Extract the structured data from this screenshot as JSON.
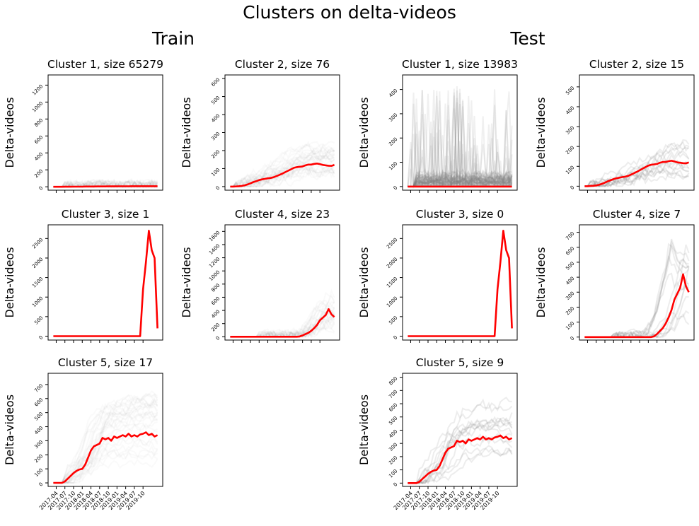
{
  "figure": {
    "title": "Clusters on delta-videos",
    "column_titles": [
      "Train",
      "Test"
    ]
  },
  "chart_data": [
    {
      "type": "line",
      "group": "Train",
      "title": "Cluster 1, size 65279",
      "ylabel": "Delta-videos",
      "ylim": [
        -40,
        1320
      ],
      "yticks": [
        0,
        200,
        400,
        600,
        800,
        1000,
        1200
      ],
      "show_xticks": false,
      "series": [
        {
          "name": "mean",
          "color": "#ff0000",
          "y": [
            0,
            0,
            0,
            0,
            1,
            1,
            1,
            2,
            2,
            2,
            2,
            3,
            3,
            3,
            3,
            4,
            4,
            4,
            4,
            5,
            5,
            5,
            5,
            6,
            6,
            6,
            6,
            7,
            7,
            7,
            7,
            7,
            7,
            7,
            7,
            7,
            7
          ]
        }
      ],
      "background": {
        "color": "#808080",
        "level": "faint",
        "curves": []
      }
    },
    {
      "type": "line",
      "group": "Train",
      "title": "Cluster 2, size 76",
      "ylabel": "Delta-videos",
      "ylim": [
        -20,
        620
      ],
      "yticks": [
        0,
        100,
        200,
        300,
        400,
        500,
        600
      ],
      "show_xticks": false,
      "series": [
        {
          "name": "mean",
          "color": "#ff0000",
          "y": [
            0,
            0,
            1,
            2,
            4,
            7,
            12,
            18,
            25,
            30,
            36,
            40,
            43,
            46,
            48,
            52,
            58,
            65,
            72,
            80,
            88,
            96,
            104,
            108,
            110,
            112,
            118,
            122,
            122,
            126,
            128,
            125,
            120,
            118,
            116,
            115,
            120
          ]
        }
      ],
      "background": {
        "color": "#808080",
        "level": "faint",
        "curves": []
      }
    },
    {
      "type": "line",
      "group": "Test",
      "title": "Cluster 1, size 13983",
      "ylabel": "Delta-videos",
      "ylim": [
        -15,
        460
      ],
      "yticks": [
        0,
        100,
        200,
        300,
        400
      ],
      "show_xticks": false,
      "series": [
        {
          "name": "mean",
          "color": "#ff0000",
          "y": [
            0,
            0,
            0,
            0,
            0,
            0,
            0,
            0,
            0,
            0,
            0,
            0,
            0,
            0,
            0,
            0,
            0,
            0,
            0,
            0,
            0,
            0,
            0,
            0,
            0,
            0,
            0,
            0,
            0,
            0,
            0,
            0,
            0,
            0,
            0,
            0,
            0
          ]
        }
      ],
      "background": {
        "color": "#808080",
        "level": "dense",
        "curves": []
      }
    },
    {
      "type": "line",
      "group": "Test",
      "title": "Cluster 2, size 15",
      "ylabel": "Delta-videos",
      "ylim": [
        -20,
        560
      ],
      "yticks": [
        0,
        100,
        200,
        300,
        400,
        500
      ],
      "show_xticks": false,
      "series": [
        {
          "name": "mean",
          "color": "#ff0000",
          "y": [
            0,
            0,
            1,
            2,
            4,
            7,
            12,
            18,
            25,
            30,
            36,
            40,
            43,
            46,
            48,
            52,
            58,
            65,
            72,
            80,
            88,
            96,
            104,
            108,
            110,
            112,
            118,
            122,
            122,
            126,
            128,
            125,
            120,
            118,
            116,
            115,
            120
          ]
        }
      ],
      "background": {
        "color": "#808080",
        "level": "medium",
        "curves": []
      }
    },
    {
      "type": "line",
      "group": "Train",
      "title": "Cluster 3, size 1",
      "ylabel": "Delta-videos",
      "ylim": [
        -100,
        2850
      ],
      "yticks": [
        0,
        500,
        1000,
        1500,
        2000,
        2500
      ],
      "show_xticks": false,
      "series": [
        {
          "name": "mean",
          "color": "#ff0000",
          "y": [
            0,
            0,
            0,
            0,
            0,
            0,
            0,
            0,
            0,
            0,
            0,
            0,
            0,
            0,
            0,
            0,
            0,
            0,
            0,
            0,
            0,
            0,
            0,
            0,
            0,
            0,
            0,
            0,
            0,
            0,
            0,
            1200,
            1900,
            2700,
            2200,
            2000,
            200
          ]
        }
      ],
      "background": {
        "color": "#808080",
        "level": "none",
        "curves": []
      }
    },
    {
      "type": "line",
      "group": "Train",
      "title": "Cluster 4, size 23",
      "ylabel": "Delta-videos",
      "ylim": [
        -50,
        1700
      ],
      "yticks": [
        0,
        200,
        400,
        600,
        800,
        1000,
        1200,
        1400,
        1600
      ],
      "show_xticks": false,
      "series": [
        {
          "name": "mean",
          "color": "#ff0000",
          "y": [
            0,
            0,
            0,
            0,
            0,
            0,
            0,
            0,
            0,
            0,
            0,
            0,
            0,
            0,
            0,
            0,
            0,
            0,
            0,
            0,
            0,
            0,
            0,
            0,
            5,
            20,
            40,
            60,
            90,
            130,
            180,
            250,
            290,
            330,
            420,
            340,
            300
          ]
        }
      ],
      "background": {
        "color": "#808080",
        "level": "faint",
        "curves": []
      }
    },
    {
      "type": "line",
      "group": "Test",
      "title": "Cluster 3, size 0",
      "ylabel": "Delta-videos",
      "ylim": [
        -100,
        2850
      ],
      "yticks": [
        0,
        500,
        1000,
        1500,
        2000,
        2500
      ],
      "show_xticks": false,
      "series": [
        {
          "name": "mean",
          "color": "#ff0000",
          "y": [
            0,
            0,
            0,
            0,
            0,
            0,
            0,
            0,
            0,
            0,
            0,
            0,
            0,
            0,
            0,
            0,
            0,
            0,
            0,
            0,
            0,
            0,
            0,
            0,
            0,
            0,
            0,
            0,
            0,
            0,
            0,
            1200,
            1900,
            2700,
            2200,
            2000,
            200
          ]
        }
      ],
      "background": {
        "color": "#808080",
        "level": "none",
        "curves": []
      }
    },
    {
      "type": "line",
      "group": "Test",
      "title": "Cluster 4, size 7",
      "ylabel": "Delta-videos",
      "ylim": [
        -20,
        750
      ],
      "yticks": [
        0,
        100,
        200,
        300,
        400,
        500,
        600,
        700
      ],
      "show_xticks": false,
      "series": [
        {
          "name": "mean",
          "color": "#ff0000",
          "y": [
            0,
            0,
            0,
            0,
            0,
            0,
            0,
            0,
            0,
            0,
            0,
            0,
            0,
            0,
            0,
            0,
            0,
            0,
            0,
            0,
            0,
            0,
            0,
            0,
            5,
            20,
            40,
            60,
            90,
            130,
            180,
            250,
            290,
            330,
            420,
            340,
            300
          ]
        }
      ],
      "background": {
        "color": "#808080",
        "level": "medium",
        "curves": []
      }
    },
    {
      "type": "line",
      "group": "Train",
      "title": "Cluster 5, size 17",
      "ylabel": "Delta-videos",
      "ylim": [
        -25,
        780
      ],
      "yticks": [
        0,
        100,
        200,
        300,
        400,
        500,
        600,
        700
      ],
      "show_xticks": true,
      "series": [
        {
          "name": "mean",
          "color": "#ff0000",
          "y": [
            0,
            0,
            0,
            0,
            10,
            30,
            50,
            70,
            85,
            95,
            100,
            130,
            180,
            230,
            260,
            270,
            280,
            320,
            310,
            320,
            300,
            330,
            320,
            330,
            340,
            330,
            350,
            330,
            340,
            330,
            345,
            350,
            360,
            340,
            350,
            330,
            340
          ]
        }
      ],
      "background": {
        "color": "#808080",
        "level": "faint",
        "curves": []
      }
    },
    {
      "type": "line",
      "group": "Test",
      "title": "Cluster 5, size 9",
      "ylabel": "Delta-videos",
      "ylim": [
        -25,
        830
      ],
      "yticks": [
        0,
        100,
        200,
        300,
        400,
        500,
        600,
        700,
        800
      ],
      "show_xticks": true,
      "series": [
        {
          "name": "mean",
          "color": "#ff0000",
          "y": [
            0,
            0,
            0,
            0,
            10,
            30,
            50,
            70,
            85,
            95,
            100,
            130,
            180,
            230,
            260,
            270,
            280,
            320,
            310,
            320,
            300,
            330,
            320,
            330,
            340,
            330,
            350,
            330,
            340,
            330,
            345,
            350,
            360,
            340,
            350,
            330,
            340
          ]
        }
      ],
      "background": {
        "color": "#808080",
        "level": "medium",
        "curves": []
      }
    }
  ],
  "xaxis": {
    "type": "date",
    "start": "2017-03",
    "n_points": 37,
    "tick_labels": [
      "2017-04",
      "2017-07",
      "2017-10",
      "2018-01",
      "2018-04",
      "2018-07",
      "2018-10",
      "2019-01",
      "2019-04",
      "2019-07",
      "2019-10"
    ]
  }
}
